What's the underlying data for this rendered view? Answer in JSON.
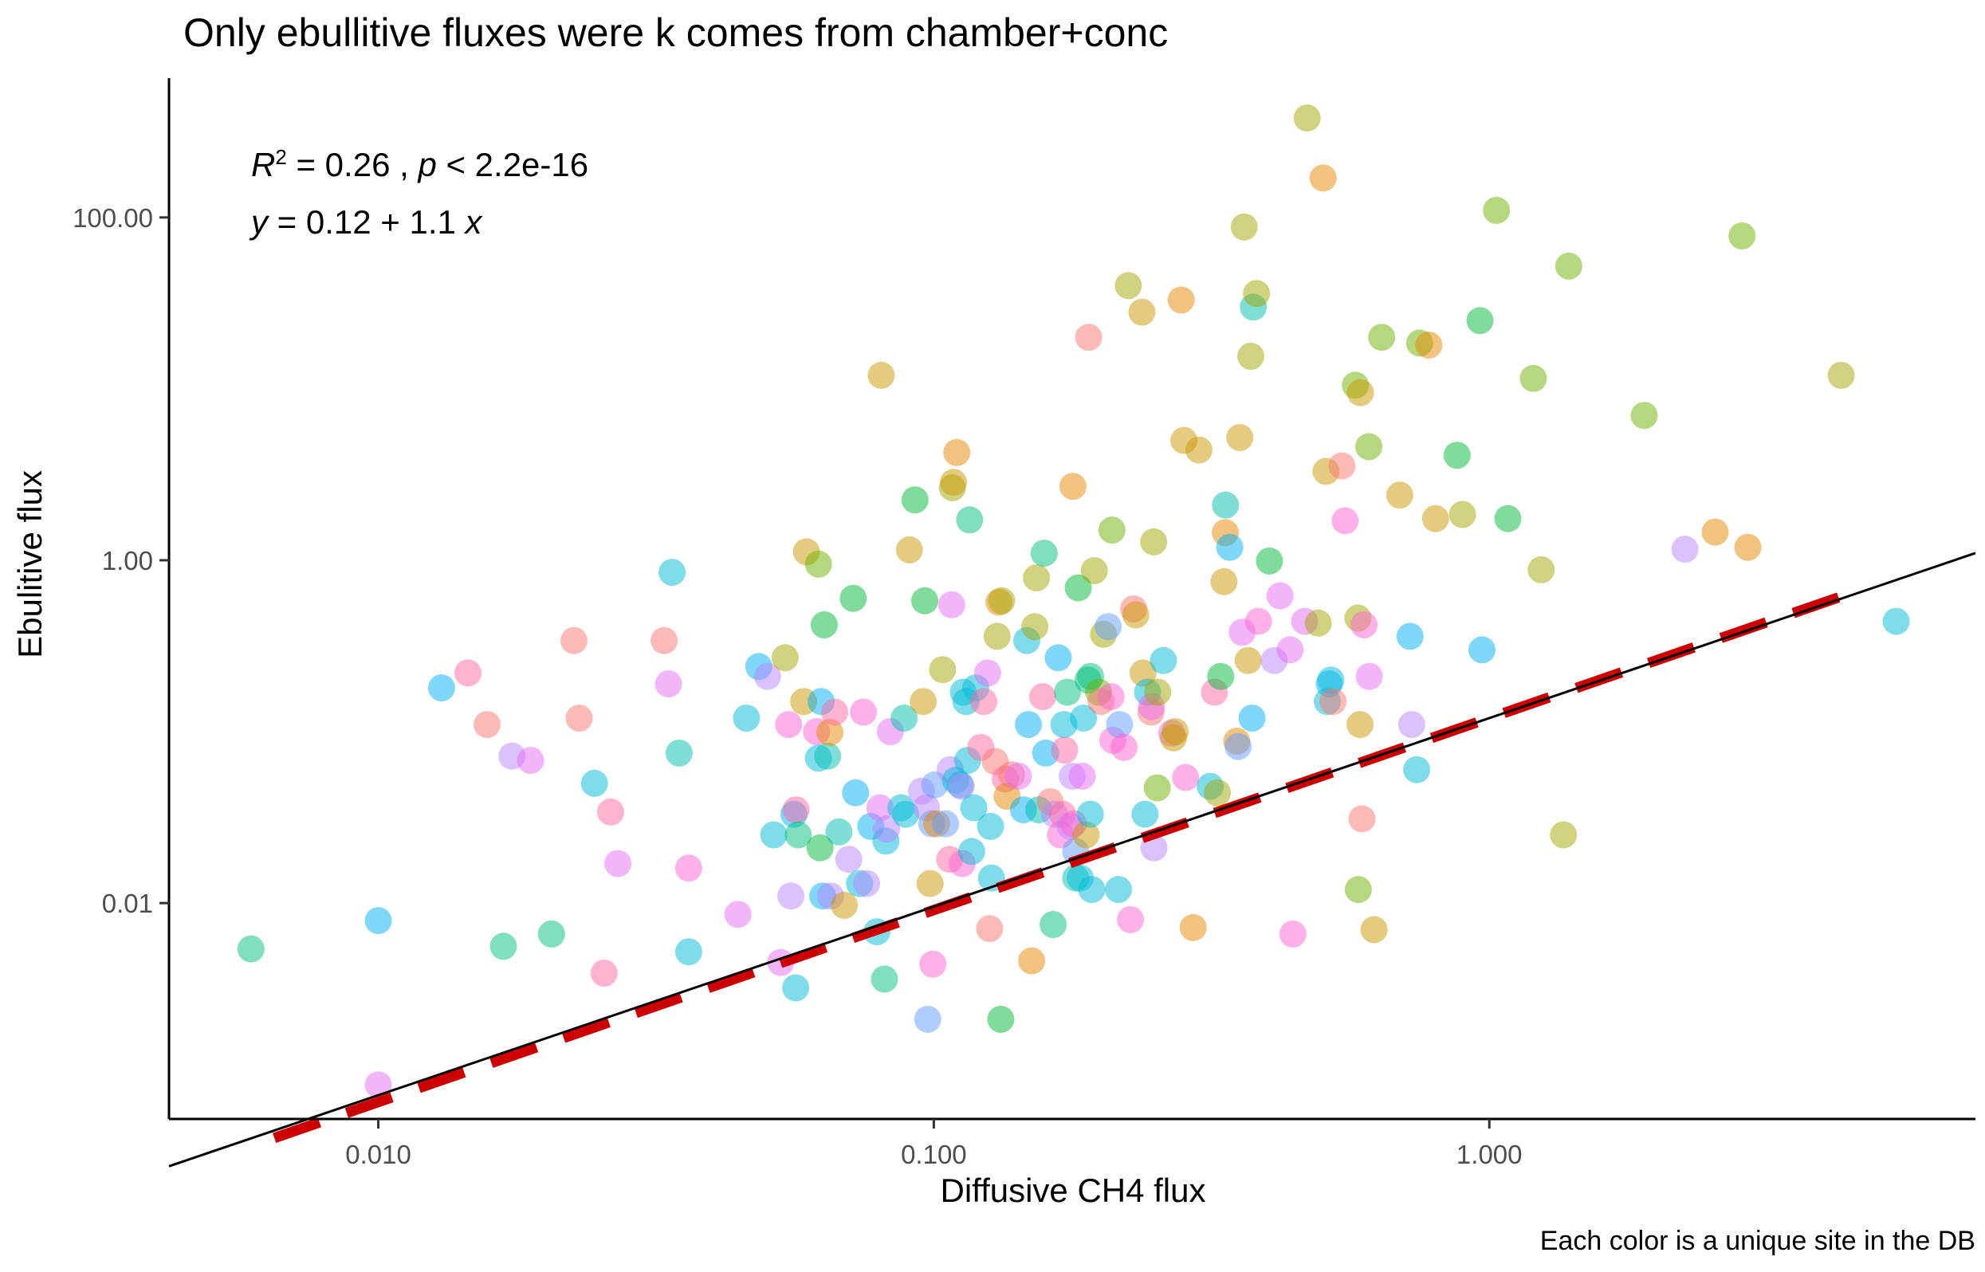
{
  "chart_data": {
    "type": "scatter",
    "title": "Only ebullitive fluxes were k comes from chamber+conc",
    "xlabel": "Diffusive CH4 flux",
    "ylabel": "Ebulitive flux",
    "caption": "Each color is a unique site in the DB",
    "x_scale": "log10",
    "y_scale": "log10",
    "xlim": [
      0.0042,
      7.5
    ],
    "ylim": [
      0.00055,
      650
    ],
    "x_ticks": [
      0.01,
      0.1,
      1.0
    ],
    "x_tick_labels": [
      "0.010",
      "0.100",
      "1.000"
    ],
    "y_ticks": [
      0.01,
      1.0,
      100.0
    ],
    "y_tick_labels": [
      "0.01",
      "1.00",
      "100.00"
    ],
    "grid": false,
    "annotation": {
      "r2_label": "R",
      "r2_exp": "2",
      "r2_value": " = 0.26 , ",
      "p_label": "p",
      "p_value": " < 2.2e-16",
      "eq_y": "y",
      "eq_body": " = 0.12 + 1.1 ",
      "eq_x": "x"
    },
    "fit_line": {
      "style": "solid",
      "color": "#000000",
      "intercept_log10": -0.9208,
      "slope": 1.1
    },
    "reference_line": {
      "style": "dashed",
      "color": "#cc0000",
      "x_range": [
        0.0065,
        4.3
      ],
      "intercept_log10": -0.9208,
      "slope": 1.12
    },
    "point_alpha": 0.5,
    "palette": [
      "#f8766d",
      "#e58700",
      "#c99800",
      "#a3a500",
      "#6bb100",
      "#00ba38",
      "#00bf7d",
      "#00c0af",
      "#00bcd8",
      "#00b0f6",
      "#619cff",
      "#b983ff",
      "#e76bf3",
      "#fd61d1",
      "#ff67a4"
    ],
    "points": [
      [
        0.0059,
        0.0054,
        6
      ],
      [
        0.01,
        0.0079,
        9
      ],
      [
        0.01,
        0.00087,
        12
      ],
      [
        0.013,
        0.18,
        9
      ],
      [
        0.0145,
        0.22,
        14
      ],
      [
        0.0157,
        0.11,
        0
      ],
      [
        0.0168,
        0.0056,
        6
      ],
      [
        0.0174,
        0.072,
        11
      ],
      [
        0.0188,
        0.068,
        12
      ],
      [
        0.0205,
        0.0066,
        6
      ],
      [
        0.0225,
        0.34,
        0
      ],
      [
        0.023,
        0.12,
        0
      ],
      [
        0.0245,
        0.05,
        8
      ],
      [
        0.0255,
        0.0039,
        14
      ],
      [
        0.0262,
        0.034,
        14
      ],
      [
        0.027,
        0.017,
        12
      ],
      [
        0.0327,
        0.34,
        0
      ],
      [
        0.0333,
        0.19,
        12
      ],
      [
        0.0338,
        0.85,
        8
      ],
      [
        0.0348,
        0.075,
        7
      ],
      [
        0.0362,
        0.0052,
        8
      ],
      [
        0.0362,
        0.016,
        13
      ],
      [
        0.0444,
        0.0086,
        12
      ],
      [
        0.046,
        0.12,
        8
      ],
      [
        0.0484,
        0.24,
        9
      ],
      [
        0.0502,
        0.21,
        11
      ],
      [
        0.0515,
        0.025,
        8
      ],
      [
        0.053,
        0.0045,
        12
      ],
      [
        0.054,
        0.27,
        3
      ],
      [
        0.0548,
        0.11,
        13
      ],
      [
        0.0553,
        0.011,
        11
      ],
      [
        0.056,
        0.033,
        9
      ],
      [
        0.0564,
        0.0032,
        8
      ],
      [
        0.0565,
        0.035,
        14
      ],
      [
        0.057,
        0.025,
        6
      ],
      [
        0.0583,
        0.15,
        2
      ],
      [
        0.059,
        1.12,
        2
      ],
      [
        0.0615,
        0.1,
        13
      ],
      [
        0.062,
        0.07,
        8
      ],
      [
        0.062,
        0.95,
        4
      ],
      [
        0.0624,
        0.021,
        5
      ],
      [
        0.0627,
        0.15,
        9
      ],
      [
        0.0631,
        0.011,
        9
      ],
      [
        0.0635,
        0.42,
        5
      ],
      [
        0.0644,
        0.072,
        7
      ],
      [
        0.065,
        0.099,
        1
      ],
      [
        0.0652,
        0.011,
        11
      ],
      [
        0.0663,
        0.13,
        14
      ],
      [
        0.0675,
        0.026,
        7
      ],
      [
        0.069,
        0.0097,
        2
      ],
      [
        0.0703,
        0.018,
        11
      ],
      [
        0.0716,
        0.6,
        5
      ],
      [
        0.0723,
        0.044,
        9
      ],
      [
        0.0735,
        0.013,
        8
      ],
      [
        0.0747,
        0.13,
        13
      ],
      [
        0.0757,
        0.013,
        11
      ],
      [
        0.077,
        0.028,
        9
      ],
      [
        0.079,
        0.0068,
        8
      ],
      [
        0.08,
        0.036,
        12
      ],
      [
        0.0804,
        12.0,
        2
      ],
      [
        0.0815,
        0.0036,
        6
      ],
      [
        0.082,
        0.023,
        8
      ],
      [
        0.0822,
        0.027,
        11
      ],
      [
        0.0835,
        0.1,
        12
      ],
      [
        0.0873,
        0.036,
        8
      ],
      [
        0.0884,
        0.12,
        7
      ],
      [
        0.089,
        0.033,
        8
      ],
      [
        0.0904,
        1.15,
        2
      ],
      [
        0.0925,
        2.25,
        5
      ],
      [
        0.095,
        0.045,
        11
      ],
      [
        0.0957,
        0.15,
        2
      ],
      [
        0.0963,
        0.58,
        5
      ],
      [
        0.097,
        0.036,
        11
      ],
      [
        0.0975,
        0.0021,
        10
      ],
      [
        0.0985,
        0.013,
        2
      ],
      [
        0.0992,
        0.029,
        10
      ],
      [
        0.0996,
        0.0044,
        13
      ],
      [
        0.1004,
        0.049,
        10
      ],
      [
        0.1012,
        0.029,
        1
      ],
      [
        0.1037,
        0.23,
        3
      ],
      [
        0.105,
        0.029,
        10
      ],
      [
        0.1068,
        0.018,
        14
      ],
      [
        0.107,
        0.06,
        11
      ],
      [
        0.1077,
        0.55,
        12
      ],
      [
        0.108,
        2.65,
        3
      ],
      [
        0.1085,
        2.85,
        2
      ],
      [
        0.1094,
        0.052,
        8
      ],
      [
        0.11,
        4.25,
        1
      ],
      [
        0.1116,
        0.049,
        8
      ],
      [
        0.112,
        0.048,
        11
      ],
      [
        0.1125,
        0.017,
        13
      ],
      [
        0.113,
        0.17,
        8
      ],
      [
        0.1143,
        0.15,
        8
      ],
      [
        0.115,
        0.068,
        8
      ],
      [
        0.116,
        1.72,
        6
      ],
      [
        0.117,
        0.02,
        8
      ],
      [
        0.118,
        0.036,
        8
      ],
      [
        0.119,
        0.18,
        8
      ],
      [
        0.1215,
        0.081,
        14
      ],
      [
        0.123,
        0.15,
        14
      ],
      [
        0.125,
        0.22,
        12
      ],
      [
        0.126,
        0.0071,
        0
      ],
      [
        0.1265,
        0.028,
        8
      ],
      [
        0.127,
        0.014,
        8
      ],
      [
        0.129,
        0.067,
        0
      ],
      [
        0.13,
        0.36,
        3
      ],
      [
        0.131,
        0.57,
        1
      ],
      [
        0.1325,
        0.58,
        3
      ],
      [
        0.132,
        0.0021,
        5
      ],
      [
        0.1345,
        0.053,
        14
      ],
      [
        0.1355,
        0.042,
        1
      ],
      [
        0.138,
        0.056,
        0
      ],
      [
        0.142,
        0.055,
        12
      ],
      [
        0.145,
        0.035,
        9
      ],
      [
        0.147,
        0.34,
        8
      ],
      [
        0.148,
        0.11,
        9
      ],
      [
        0.15,
        0.0046,
        1
      ],
      [
        0.152,
        0.41,
        3
      ],
      [
        0.153,
        0.79,
        3
      ],
      [
        0.1545,
        0.035,
        7
      ],
      [
        0.158,
        1.1,
        6
      ],
      [
        0.157,
        0.16,
        14
      ],
      [
        0.159,
        0.075,
        9
      ],
      [
        0.162,
        0.039,
        0
      ],
      [
        0.164,
        0.0075,
        6
      ],
      [
        0.165,
        0.033,
        11
      ],
      [
        0.1675,
        0.27,
        9
      ],
      [
        0.169,
        0.025,
        13
      ],
      [
        0.1705,
        0.033,
        14
      ],
      [
        0.1715,
        0.11,
        8
      ],
      [
        0.172,
        0.078,
        14
      ],
      [
        0.174,
        0.17,
        6
      ],
      [
        0.176,
        0.028,
        11
      ],
      [
        0.1775,
        0.055,
        11
      ],
      [
        0.178,
        2.7,
        1
      ],
      [
        0.1785,
        0.029,
        13
      ],
      [
        0.18,
        0.014,
        7
      ],
      [
        0.18,
        0.02,
        10
      ],
      [
        0.182,
        0.69,
        5
      ],
      [
        0.1835,
        0.014,
        8
      ],
      [
        0.185,
        0.055,
        12
      ],
      [
        0.186,
        0.12,
        8
      ],
      [
        0.188,
        0.025,
        2
      ],
      [
        0.1895,
        0.2,
        6
      ],
      [
        0.19,
        20.0,
        0
      ],
      [
        0.1913,
        0.033,
        8
      ],
      [
        0.1915,
        0.21,
        6
      ],
      [
        0.1925,
        0.012,
        8
      ],
      [
        0.1945,
        0.87,
        3
      ],
      [
        0.198,
        0.17,
        4
      ],
      [
        0.2,
        0.15,
        0
      ],
      [
        0.202,
        0.37,
        3
      ],
      [
        0.206,
        0.41,
        10
      ],
      [
        0.2085,
        0.16,
        13
      ],
      [
        0.2093,
        1.5,
        4
      ],
      [
        0.21,
        0.089,
        13
      ],
      [
        0.215,
        0.012,
        8
      ],
      [
        0.216,
        0.11,
        10
      ],
      [
        0.22,
        0.081,
        13
      ],
      [
        0.224,
        40.0,
        3
      ],
      [
        0.226,
        0.008,
        13
      ],
      [
        0.229,
        0.52,
        0
      ],
      [
        0.231,
        0.48,
        2
      ],
      [
        0.237,
        28.0,
        2
      ],
      [
        0.238,
        0.22,
        2
      ],
      [
        0.24,
        0.033,
        8
      ],
      [
        0.2425,
        0.17,
        8
      ],
      [
        0.246,
        0.13,
        0
      ],
      [
        0.2465,
        0.14,
        12
      ],
      [
        0.2488,
        1.28,
        3
      ],
      [
        0.249,
        0.021,
        11
      ],
      [
        0.2525,
        0.047,
        4
      ],
      [
        0.253,
        0.17,
        3
      ],
      [
        0.259,
        0.26,
        8
      ],
      [
        0.268,
        0.098,
        12
      ],
      [
        0.27,
        0.092,
        2
      ],
      [
        0.272,
        0.1,
        2
      ],
      [
        0.2788,
        33.0,
        1
      ],
      [
        0.282,
        5.0,
        2
      ],
      [
        0.284,
        0.054,
        13
      ],
      [
        0.293,
        0.0072,
        1
      ],
      [
        0.3,
        4.4,
        2
      ],
      [
        0.3145,
        0.048,
        8
      ],
      [
        0.32,
        0.17,
        14
      ],
      [
        0.324,
        0.044,
        3
      ],
      [
        0.3285,
        0.21,
        5
      ],
      [
        0.333,
        0.75,
        2
      ],
      [
        0.3347,
        1.45,
        1
      ],
      [
        0.335,
        2.1,
        7
      ],
      [
        0.341,
        1.19,
        9
      ],
      [
        0.351,
        0.088,
        1
      ],
      [
        0.353,
        0.082,
        10
      ],
      [
        0.3555,
        5.2,
        2
      ],
      [
        0.359,
        0.38,
        12
      ],
      [
        0.362,
        88.0,
        3
      ],
      [
        0.368,
        0.26,
        2
      ],
      [
        0.372,
        15.5,
        3
      ],
      [
        0.374,
        0.12,
        9
      ],
      [
        0.376,
        30.0,
        7
      ],
      [
        0.381,
        36.0,
        3
      ],
      [
        0.384,
        0.44,
        13
      ],
      [
        0.402,
        0.99,
        5
      ],
      [
        0.41,
        0.26,
        11
      ],
      [
        0.42,
        0.62,
        12
      ],
      [
        0.438,
        0.3,
        12
      ],
      [
        0.443,
        0.0066,
        13
      ],
      [
        0.465,
        0.44,
        12
      ],
      [
        0.47,
        380.0,
        3
      ],
      [
        0.492,
        0.43,
        3
      ],
      [
        0.502,
        170.0,
        1
      ],
      [
        0.508,
        3.3,
        2
      ],
      [
        0.511,
        0.15,
        8
      ],
      [
        0.515,
        0.19,
        9
      ],
      [
        0.5185,
        0.2,
        8
      ],
      [
        0.523,
        0.15,
        0
      ],
      [
        0.543,
        3.55,
        0
      ],
      [
        0.55,
        1.7,
        13
      ],
      [
        0.574,
        10.5,
        4
      ],
      [
        0.58,
        0.46,
        3
      ],
      [
        0.581,
        0.012,
        4
      ],
      [
        0.585,
        0.11,
        2
      ],
      [
        0.586,
        9.5,
        2
      ],
      [
        0.59,
        0.031,
        0
      ],
      [
        0.595,
        0.42,
        13
      ],
      [
        0.608,
        0.21,
        12
      ],
      [
        0.607,
        4.6,
        4
      ],
      [
        0.62,
        0.007,
        2
      ],
      [
        0.64,
        20.0,
        4
      ],
      [
        0.69,
        2.4,
        2
      ],
      [
        0.72,
        0.36,
        9
      ],
      [
        0.725,
        0.11,
        11
      ],
      [
        0.74,
        0.06,
        8
      ],
      [
        0.749,
        18.5,
        4
      ],
      [
        0.778,
        18.0,
        1
      ],
      [
        0.8,
        1.75,
        2
      ],
      [
        0.875,
        4.1,
        5
      ],
      [
        0.895,
        1.85,
        3
      ],
      [
        0.962,
        25.0,
        5
      ],
      [
        0.97,
        0.3,
        9
      ],
      [
        1.03,
        110.0,
        4
      ],
      [
        1.08,
        1.75,
        5
      ],
      [
        1.2,
        11.5,
        4
      ],
      [
        1.24,
        0.88,
        3
      ],
      [
        1.36,
        0.025,
        3
      ],
      [
        1.39,
        52.0,
        4
      ],
      [
        1.9,
        7.0,
        4
      ],
      [
        2.25,
        1.16,
        11
      ],
      [
        2.55,
        1.46,
        1
      ],
      [
        2.85,
        78.0,
        4
      ],
      [
        2.92,
        1.19,
        1
      ],
      [
        4.3,
        12.0,
        3
      ],
      [
        5.4,
        0.44,
        8
      ]
    ]
  }
}
